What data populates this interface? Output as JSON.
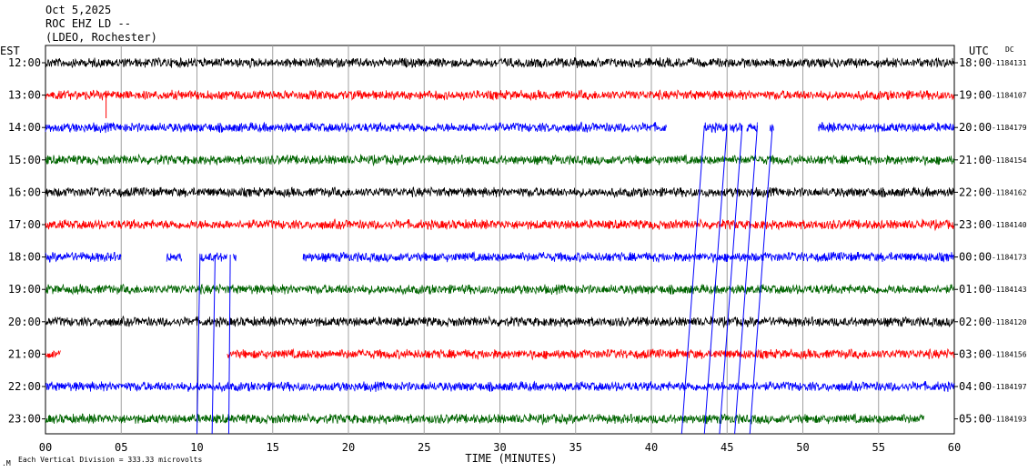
{
  "header": {
    "date": "Oct 5,2025",
    "station": "ROC EHZ LD --",
    "network": "(LDEO, Rochester)"
  },
  "chart_data": {
    "type": "line",
    "subtype": "helicorder",
    "left_axis_title": "EST",
    "right_axis_title": "UTC",
    "dc_title": "DC",
    "xlabel": "TIME (MINUTES)",
    "xlim": [
      0,
      60
    ],
    "x_ticks": [
      "00",
      "05",
      "10",
      "15",
      "20",
      "25",
      "30",
      "35",
      "40",
      "45",
      "50",
      "55",
      "60"
    ],
    "grid": true,
    "scale_note": "Each Vertical Division =  333.33 microvolts",
    "trace_colors": [
      "#000000",
      "#ff0000",
      "#0000ff",
      "#006400"
    ],
    "rows": [
      {
        "est": "12:00",
        "utc": "18:00",
        "dc": "-1184131",
        "color": "#000000",
        "segments": [
          [
            0,
            60
          ]
        ]
      },
      {
        "est": "13:00",
        "utc": "19:00",
        "dc": "-1184107",
        "color": "#ff0000",
        "segments": [
          [
            0,
            60
          ]
        ]
      },
      {
        "est": "14:00",
        "utc": "20:00",
        "dc": "-1184179",
        "color": "#0000ff",
        "segments": [
          [
            0,
            41
          ],
          [
            43.5,
            45
          ],
          [
            45.2,
            46
          ],
          [
            46.3,
            47
          ],
          [
            47.8,
            48.1
          ],
          [
            51,
            60
          ]
        ]
      },
      {
        "est": "15:00",
        "utc": "21:00",
        "dc": "-1184154",
        "color": "#006400",
        "segments": [
          [
            0,
            60
          ]
        ]
      },
      {
        "est": "16:00",
        "utc": "22:00",
        "dc": "-1184162",
        "color": "#000000",
        "segments": [
          [
            0,
            60
          ]
        ]
      },
      {
        "est": "17:00",
        "utc": "23:00",
        "dc": "-1184140",
        "color": "#ff0000",
        "segments": [
          [
            0,
            60
          ]
        ]
      },
      {
        "est": "18:00",
        "utc": "00:00",
        "dc": "-1184173",
        "color": "#0000ff",
        "segments": [
          [
            0,
            5
          ],
          [
            8,
            9
          ],
          [
            10.2,
            12
          ],
          [
            12.4,
            12.6
          ],
          [
            17,
            60
          ]
        ]
      },
      {
        "est": "19:00",
        "utc": "01:00",
        "dc": "-1184143",
        "color": "#006400",
        "segments": [
          [
            0,
            60
          ]
        ]
      },
      {
        "est": "20:00",
        "utc": "02:00",
        "dc": "-1184120",
        "color": "#000000",
        "segments": [
          [
            0,
            60
          ]
        ]
      },
      {
        "est": "21:00",
        "utc": "03:00",
        "dc": "-1184156",
        "color": "#ff0000",
        "segments": [
          [
            0,
            1
          ],
          [
            12,
            60
          ]
        ]
      },
      {
        "est": "22:00",
        "utc": "04:00",
        "dc": "-1184197",
        "color": "#0000ff",
        "segments": [
          [
            0,
            60
          ]
        ]
      },
      {
        "est": "23:00",
        "utc": "05:00",
        "dc": "-1184193",
        "color": "#006400",
        "segments": [
          [
            0,
            58
          ]
        ]
      }
    ]
  }
}
